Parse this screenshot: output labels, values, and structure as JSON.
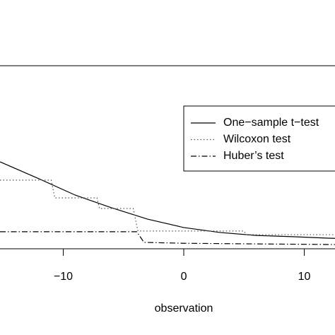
{
  "chart_data": {
    "type": "line",
    "xlabel": "observation",
    "xlim": [
      -15.25,
      12.55
    ],
    "xticks": [
      {
        "value": -10,
        "label": "−10"
      },
      0,
      10
    ],
    "ylim": [
      0,
      1
    ],
    "legend": "top-right",
    "series": [
      {
        "name": "One−sample t−test",
        "color": "#000000",
        "dash": "solid",
        "x": [
          -15.25,
          -12,
          -9,
          -6,
          -3,
          0,
          3,
          6,
          9,
          12,
          12.55
        ],
        "values": [
          0.475,
          0.382,
          0.293,
          0.224,
          0.162,
          0.116,
          0.089,
          0.073,
          0.066,
          0.058,
          0.057
        ]
      },
      {
        "name": "Wilcoxon test",
        "color": "#555555",
        "dash": "dotted",
        "x": [
          -15.25,
          -11,
          -10.7,
          -7.2,
          -7,
          -4.2,
          -3.8,
          5,
          5.2,
          12.55
        ],
        "values": [
          0.375,
          0.375,
          0.278,
          0.278,
          0.22,
          0.22,
          0.097,
          0.097,
          0.077,
          0.077
        ]
      },
      {
        "name": "Huber’s test",
        "color": "#000000",
        "dash": "dashdot",
        "x": [
          -15.25,
          -3.9,
          -3.3,
          0,
          12.55
        ],
        "values": [
          0.093,
          0.093,
          0.035,
          0.03,
          0.023
        ]
      }
    ]
  }
}
